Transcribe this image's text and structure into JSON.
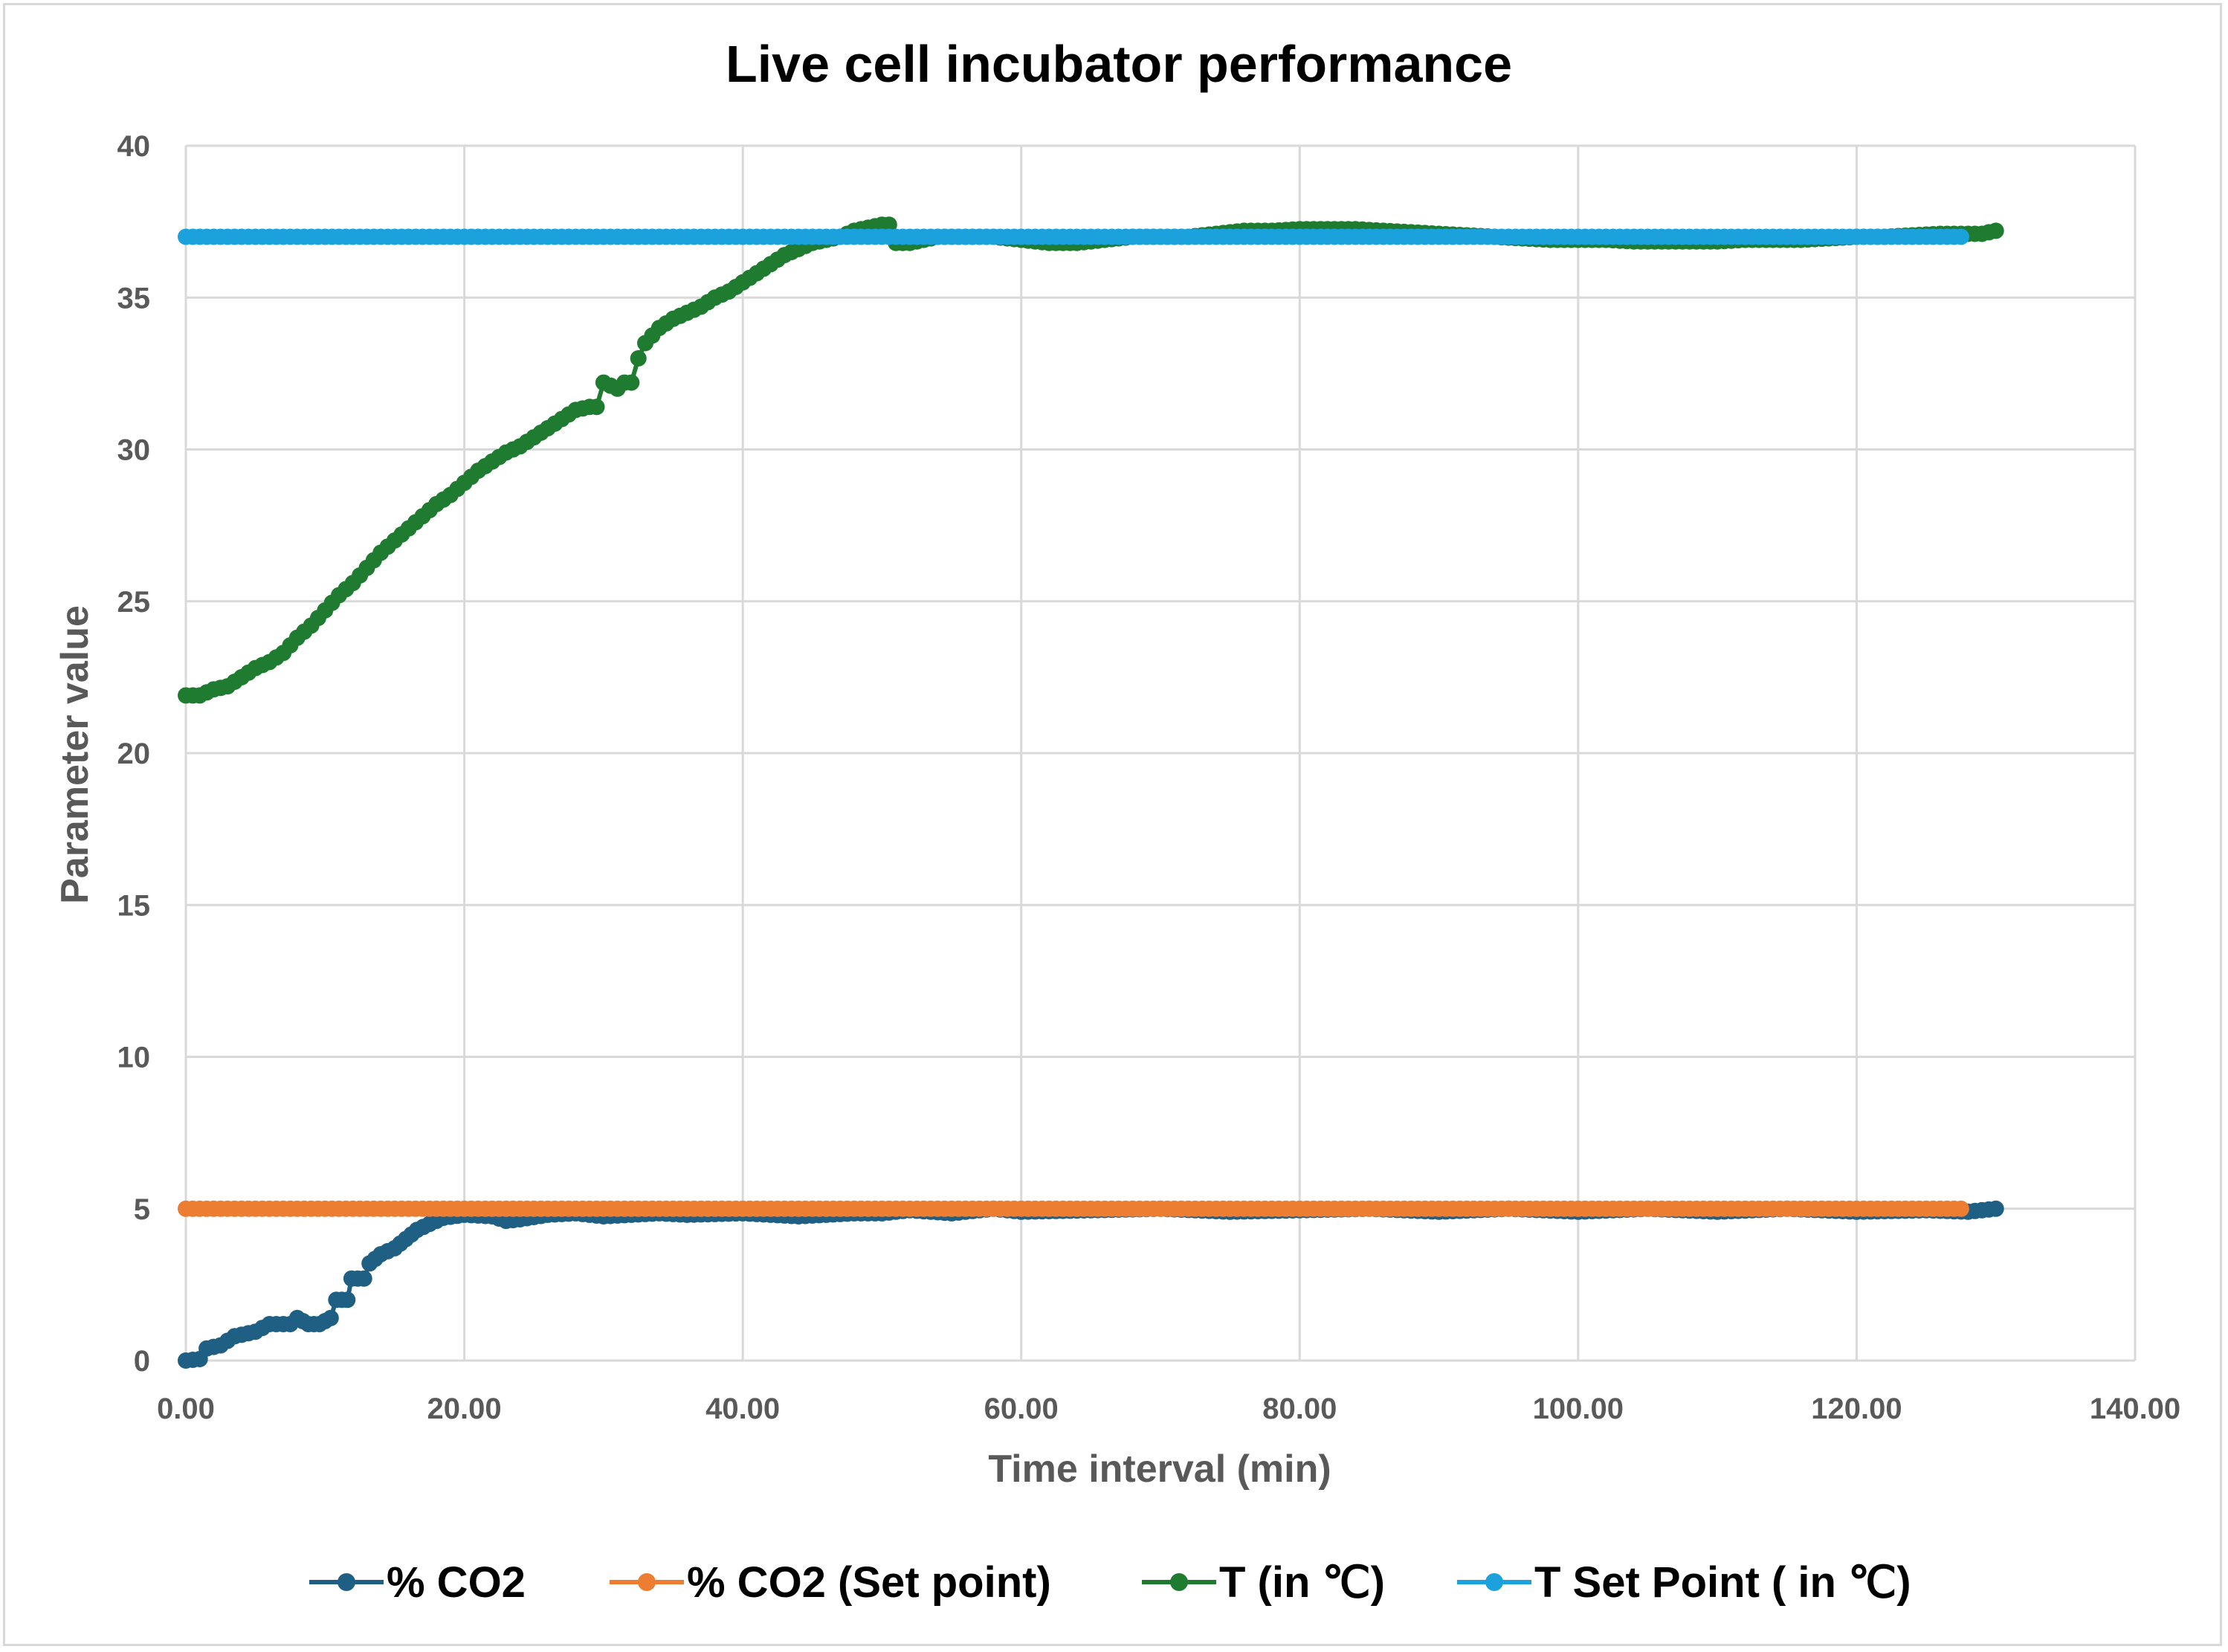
{
  "chart_data": {
    "type": "line",
    "title": "Live cell incubator performance",
    "xlabel": "Time interval (min)",
    "ylabel": "Parameter value",
    "xlim": [
      0,
      140
    ],
    "ylim": [
      0,
      40
    ],
    "x_ticks": [
      "0.00",
      "20.00",
      "40.00",
      "60.00",
      "80.00",
      "100.00",
      "120.00",
      "140.00"
    ],
    "y_ticks": [
      "0",
      "5",
      "10",
      "15",
      "20",
      "25",
      "30",
      "35",
      "40"
    ],
    "grid": true,
    "legend": "bottom",
    "series": [
      {
        "name": "% CO2",
        "color": "#1f5f84",
        "points": [
          [
            0,
            0
          ],
          [
            1,
            0.05
          ],
          [
            1.5,
            0.4
          ],
          [
            2.5,
            0.5
          ],
          [
            3.5,
            0.8
          ],
          [
            5,
            0.95
          ],
          [
            6,
            1.2
          ],
          [
            7.5,
            1.2
          ],
          [
            8,
            1.4
          ],
          [
            8.8,
            1.2
          ],
          [
            9.6,
            1.2
          ],
          [
            10.4,
            1.4
          ],
          [
            10.8,
            2.0
          ],
          [
            11.6,
            2.0
          ],
          [
            11.9,
            2.7
          ],
          [
            12.8,
            2.7
          ],
          [
            13.2,
            3.2
          ],
          [
            14,
            3.5
          ],
          [
            15,
            3.7
          ],
          [
            15.8,
            4.0
          ],
          [
            16.6,
            4.3
          ],
          [
            17.5,
            4.5
          ],
          [
            18.5,
            4.7
          ],
          [
            20,
            4.8
          ],
          [
            22,
            4.75
          ],
          [
            23,
            4.6
          ],
          [
            24,
            4.65
          ],
          [
            26,
            4.8
          ],
          [
            28,
            4.85
          ],
          [
            30,
            4.75
          ],
          [
            32,
            4.8
          ],
          [
            34,
            4.85
          ],
          [
            36,
            4.8
          ],
          [
            40,
            4.85
          ],
          [
            44,
            4.75
          ],
          [
            46,
            4.8
          ],
          [
            48,
            4.85
          ],
          [
            50,
            4.85
          ],
          [
            52,
            4.95
          ],
          [
            55,
            4.85
          ],
          [
            58,
            5.0
          ],
          [
            60,
            4.9
          ],
          [
            65,
            4.95
          ],
          [
            70,
            5.0
          ],
          [
            75,
            4.9
          ],
          [
            80,
            4.95
          ],
          [
            85,
            5.0
          ],
          [
            90,
            4.9
          ],
          [
            95,
            5.0
          ],
          [
            100,
            4.9
          ],
          [
            105,
            5.0
          ],
          [
            110,
            4.9
          ],
          [
            115,
            5.0
          ],
          [
            120,
            4.9
          ],
          [
            125,
            4.95
          ],
          [
            128,
            4.9
          ],
          [
            130,
            5.0
          ]
        ]
      },
      {
        "name": "% CO2 (Set point)",
        "color": "#ed7d31",
        "points": [
          [
            0,
            5
          ],
          [
            127.5,
            5
          ]
        ]
      },
      {
        "name": "T (in ℃)",
        "color": "#1e7b30",
        "points": [
          [
            0,
            21.9
          ],
          [
            1,
            21.9
          ],
          [
            2,
            22.1
          ],
          [
            3,
            22.2
          ],
          [
            4,
            22.5
          ],
          [
            5,
            22.8
          ],
          [
            6,
            23.0
          ],
          [
            7,
            23.3
          ],
          [
            8,
            23.8
          ],
          [
            9,
            24.2
          ],
          [
            10,
            24.7
          ],
          [
            11,
            25.2
          ],
          [
            12,
            25.6
          ],
          [
            13,
            26.1
          ],
          [
            14,
            26.6
          ],
          [
            15,
            27.0
          ],
          [
            16,
            27.4
          ],
          [
            17,
            27.8
          ],
          [
            18,
            28.2
          ],
          [
            19,
            28.5
          ],
          [
            20,
            28.9
          ],
          [
            21,
            29.3
          ],
          [
            22,
            29.6
          ],
          [
            23,
            29.9
          ],
          [
            24,
            30.1
          ],
          [
            25,
            30.4
          ],
          [
            26,
            30.7
          ],
          [
            27,
            31.0
          ],
          [
            28,
            31.3
          ],
          [
            29,
            31.4
          ],
          [
            29.5,
            31.4
          ],
          [
            30,
            32.2
          ],
          [
            31,
            32.0
          ],
          [
            31.5,
            32.2
          ],
          [
            32,
            32.2
          ],
          [
            32.5,
            33.0
          ],
          [
            33,
            33.5
          ],
          [
            34,
            34.0
          ],
          [
            35,
            34.3
          ],
          [
            36,
            34.5
          ],
          [
            37,
            34.7
          ],
          [
            38,
            35.0
          ],
          [
            39,
            35.2
          ],
          [
            40,
            35.5
          ],
          [
            41,
            35.8
          ],
          [
            42,
            36.1
          ],
          [
            43,
            36.4
          ],
          [
            44,
            36.6
          ],
          [
            45,
            36.8
          ],
          [
            46,
            36.9
          ],
          [
            47,
            37.0
          ],
          [
            48,
            37.2
          ],
          [
            49,
            37.3
          ],
          [
            50,
            37.4
          ],
          [
            50.5,
            37.4
          ],
          [
            51,
            36.8
          ],
          [
            52,
            36.8
          ],
          [
            54,
            37.0
          ],
          [
            56,
            37.0
          ],
          [
            58,
            37.0
          ],
          [
            60,
            36.9
          ],
          [
            62,
            36.8
          ],
          [
            64,
            36.8
          ],
          [
            66,
            36.9
          ],
          [
            68,
            37.0
          ],
          [
            70,
            37.0
          ],
          [
            72,
            37.0
          ],
          [
            74,
            37.1
          ],
          [
            76,
            37.2
          ],
          [
            78,
            37.2
          ],
          [
            80,
            37.25
          ],
          [
            82,
            37.25
          ],
          [
            84,
            37.25
          ],
          [
            86,
            37.2
          ],
          [
            88,
            37.15
          ],
          [
            90,
            37.1
          ],
          [
            92,
            37.05
          ],
          [
            94,
            37.0
          ],
          [
            96,
            36.95
          ],
          [
            98,
            36.9
          ],
          [
            100,
            36.9
          ],
          [
            102,
            36.9
          ],
          [
            104,
            36.85
          ],
          [
            106,
            36.85
          ],
          [
            108,
            36.85
          ],
          [
            110,
            36.85
          ],
          [
            112,
            36.9
          ],
          [
            114,
            36.9
          ],
          [
            116,
            36.9
          ],
          [
            118,
            36.95
          ],
          [
            120,
            37.0
          ],
          [
            122,
            37.0
          ],
          [
            124,
            37.05
          ],
          [
            126,
            37.1
          ],
          [
            128,
            37.1
          ],
          [
            129,
            37.1
          ],
          [
            130,
            37.2
          ]
        ]
      },
      {
        "name": "T Set Point ( in ℃)",
        "color": "#1ba1dc",
        "points": [
          [
            0,
            37
          ],
          [
            127.5,
            37
          ]
        ]
      }
    ]
  }
}
